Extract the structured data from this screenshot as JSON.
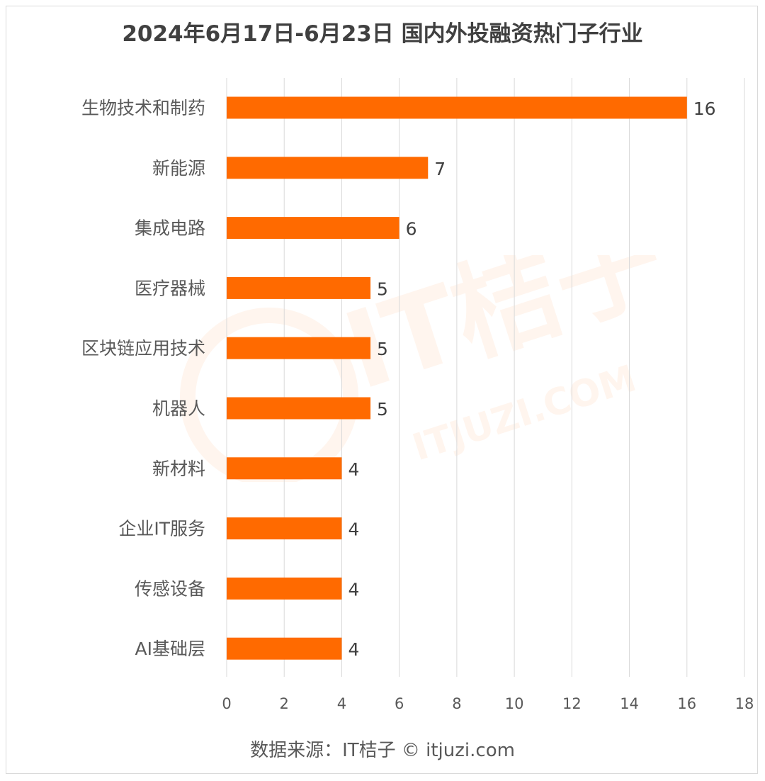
{
  "title": "2024年6月17日-6月23日 国内外投融资热门子行业",
  "footer": "数据来源：IT桔子 © itjuzi.com",
  "watermark": {
    "main": "IT桔子",
    "sub": "ITJUZI.COM"
  },
  "colors": {
    "bar": "#ff6a00",
    "grid": "#d9d9d9",
    "text": "#595959",
    "title": "#404040"
  },
  "chart_data": {
    "type": "bar",
    "orientation": "horizontal",
    "categories": [
      "生物技术和制药",
      "新能源",
      "集成电路",
      "医疗器械",
      "区块链应用技术",
      "机器人",
      "新材料",
      "企业IT服务",
      "传感设备",
      "AI基础层"
    ],
    "values": [
      16,
      7,
      6,
      5,
      5,
      5,
      4,
      4,
      4,
      4
    ],
    "xlim": [
      0,
      18
    ],
    "xticks": [
      0,
      2,
      4,
      6,
      8,
      10,
      12,
      14,
      16,
      18
    ],
    "grid": true,
    "data_labels": true
  }
}
